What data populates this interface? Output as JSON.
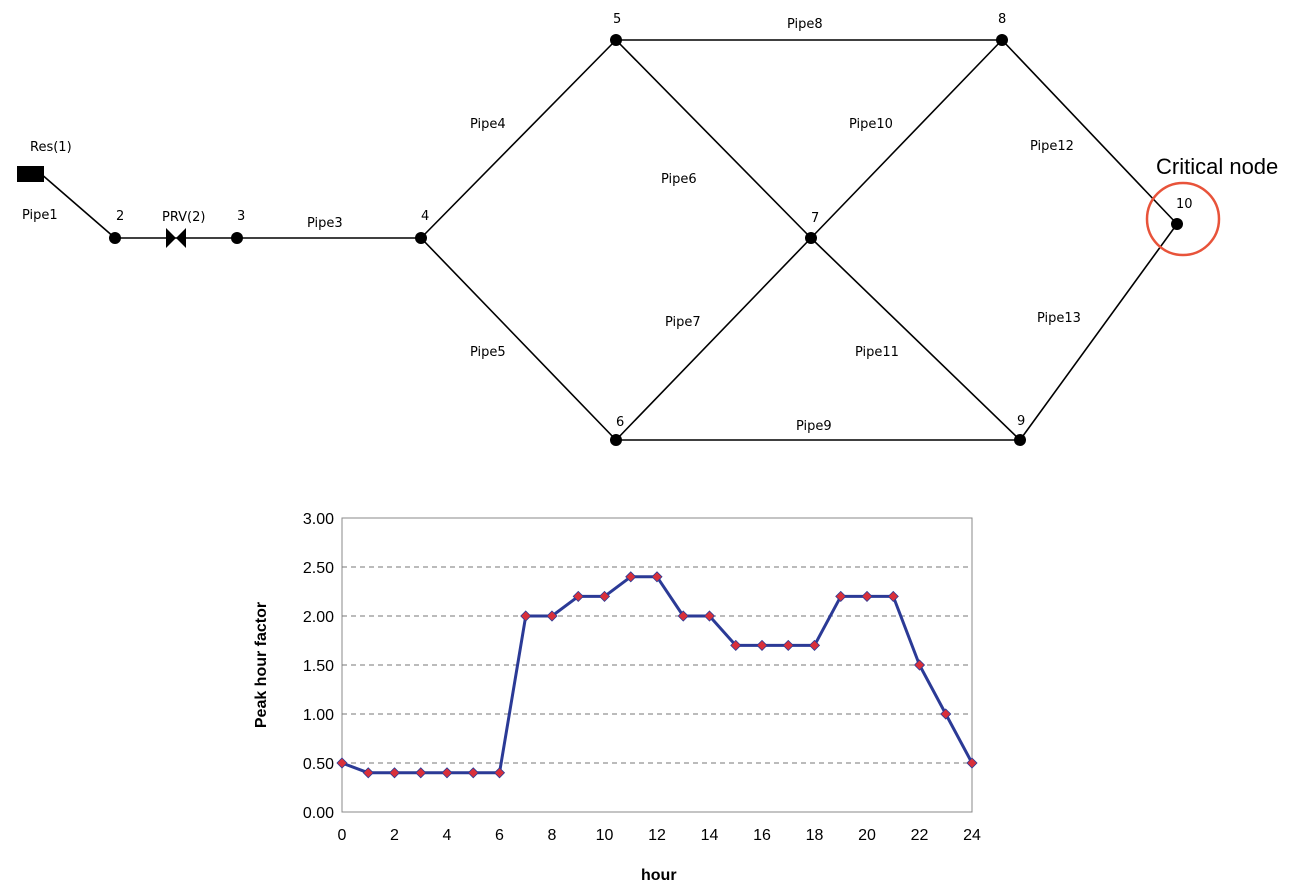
{
  "network": {
    "reservoir_label": "Res(1)",
    "valve_label": "PRV(2)",
    "critical_label": "Critical node",
    "highlight_color": "#e8533a",
    "nodes": [
      {
        "id": "2",
        "label": "2"
      },
      {
        "id": "3",
        "label": "3"
      },
      {
        "id": "4",
        "label": "4"
      },
      {
        "id": "5",
        "label": "5"
      },
      {
        "id": "6",
        "label": "6"
      },
      {
        "id": "7",
        "label": "7"
      },
      {
        "id": "8",
        "label": "8"
      },
      {
        "id": "9",
        "label": "9"
      },
      {
        "id": "10",
        "label": "10"
      }
    ],
    "pipes": [
      {
        "label": "Pipe1",
        "from": "res",
        "to": "2"
      },
      {
        "label": "Pipe3",
        "from": "3",
        "to": "4"
      },
      {
        "label": "Pipe4",
        "from": "4",
        "to": "5"
      },
      {
        "label": "Pipe5",
        "from": "4",
        "to": "6"
      },
      {
        "label": "Pipe6",
        "from": "5",
        "to": "7"
      },
      {
        "label": "Pipe7",
        "from": "6",
        "to": "7"
      },
      {
        "label": "Pipe8",
        "from": "5",
        "to": "8"
      },
      {
        "label": "Pipe9",
        "from": "6",
        "to": "9"
      },
      {
        "label": "Pipe10",
        "from": "7",
        "to": "8"
      },
      {
        "label": "Pipe11",
        "from": "7",
        "to": "9"
      },
      {
        "label": "Pipe12",
        "from": "8",
        "to": "10"
      },
      {
        "label": "Pipe13",
        "from": "9",
        "to": "10"
      }
    ]
  },
  "chart_data": {
    "type": "line",
    "xlabel": "hour",
    "ylabel": "Peak hour factor",
    "xlim": [
      0,
      24
    ],
    "ylim": [
      0,
      3
    ],
    "x_ticks": [
      "0",
      "2",
      "4",
      "6",
      "8",
      "10",
      "12",
      "14",
      "16",
      "18",
      "20",
      "22",
      "24"
    ],
    "y_ticks": [
      "0.00",
      "0.50",
      "1.00",
      "1.50",
      "2.00",
      "2.50",
      "3.00"
    ],
    "grid": "horizontal dashed",
    "line_color": "#2b3a96",
    "marker_color": "#d9303a",
    "x": [
      0,
      1,
      2,
      3,
      4,
      5,
      6,
      7,
      8,
      9,
      10,
      11,
      12,
      13,
      14,
      15,
      16,
      17,
      18,
      19,
      20,
      21,
      22,
      23,
      24
    ],
    "y": [
      0.5,
      0.4,
      0.4,
      0.4,
      0.4,
      0.4,
      0.4,
      2.0,
      2.0,
      2.2,
      2.2,
      2.4,
      2.4,
      2.0,
      2.0,
      1.7,
      1.7,
      1.7,
      1.7,
      2.2,
      2.2,
      2.2,
      1.5,
      1.0,
      0.5
    ]
  }
}
